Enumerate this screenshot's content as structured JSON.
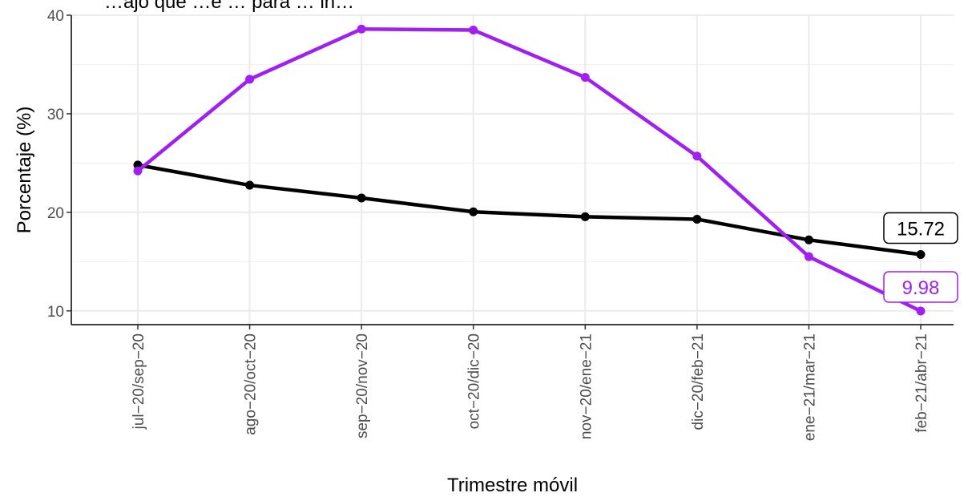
{
  "chart_data": {
    "type": "line",
    "title": "…ajo que …e … para … in…",
    "xlabel": "Trimestre móvil",
    "ylabel": "Porcentaje (%)",
    "ylim": [
      8.6,
      40
    ],
    "yticks": [
      10,
      20,
      30,
      40
    ],
    "grid": true,
    "categories": [
      "jul−20/sep−20",
      "ago−20/oct−20",
      "sep−20/nov−20",
      "oct−20/dic−20",
      "nov−20/ene−21",
      "dic−20/feb−21",
      "ene−21/mar−21",
      "feb−21/abr−21"
    ],
    "series": [
      {
        "color": "#000000",
        "values": [
          24.8,
          22.75,
          21.45,
          20.05,
          19.55,
          19.3,
          17.2,
          15.72
        ],
        "end_label": "15.72"
      },
      {
        "color": "#a020f0",
        "values": [
          24.2,
          33.5,
          38.6,
          38.5,
          33.7,
          25.7,
          15.5,
          9.98
        ],
        "end_label": "9.98"
      }
    ]
  }
}
